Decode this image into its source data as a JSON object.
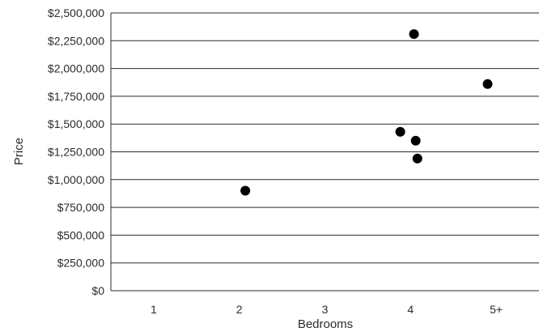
{
  "chart_data": {
    "type": "scatter",
    "title": "",
    "xlabel": "Bedrooms",
    "ylabel": "Price",
    "x_categories": [
      "1",
      "2",
      "3",
      "4",
      "5+"
    ],
    "y_ticks": [
      {
        "value": 0,
        "label": "$0"
      },
      {
        "value": 250000,
        "label": "$250,000"
      },
      {
        "value": 500000,
        "label": "$500,000"
      },
      {
        "value": 750000,
        "label": "$750,000"
      },
      {
        "value": 1000000,
        "label": "$1,000,000"
      },
      {
        "value": 1250000,
        "label": "$1,250,000"
      },
      {
        "value": 1500000,
        "label": "$1,500,000"
      },
      {
        "value": 1750000,
        "label": "$1,750,000"
      },
      {
        "value": 2000000,
        "label": "$2,000,000"
      },
      {
        "value": 2250000,
        "label": "$2,250,000"
      },
      {
        "value": 2500000,
        "label": "$2,500,000"
      }
    ],
    "ylim": [
      0,
      2500000
    ],
    "xlim": [
      0.5,
      5.5
    ],
    "grid": "horizontal",
    "points": [
      {
        "x": 2.07,
        "y": 900000
      },
      {
        "x": 3.88,
        "y": 1430000
      },
      {
        "x": 4.04,
        "y": 2310000
      },
      {
        "x": 4.06,
        "y": 1350000
      },
      {
        "x": 4.08,
        "y": 1190000
      },
      {
        "x": 4.9,
        "y": 1860000
      }
    ],
    "colors": {
      "point": "#000000",
      "grid": "#2b2b2b",
      "text": "#2b2b2b"
    }
  }
}
